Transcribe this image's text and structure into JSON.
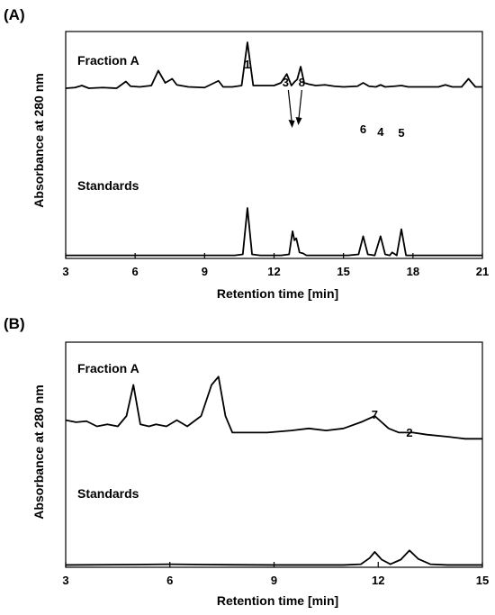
{
  "chart_data": [
    {
      "type": "line",
      "panel_label": "(A)",
      "xlabel": "Retention time [min]",
      "ylabel": "Absorbance at 280 nm",
      "xlim": [
        3,
        21
      ],
      "xticks": [
        "3",
        "6",
        "9",
        "12",
        "15",
        "18",
        "21"
      ],
      "y_ticks_shown": false,
      "series": [
        {
          "name": "Fraction A",
          "color": "#000000",
          "baseline": 0.58,
          "x": [
            3.0,
            3.4,
            3.7,
            4.0,
            4.6,
            5.2,
            5.6,
            5.8,
            6.2,
            6.7,
            7.0,
            7.3,
            7.6,
            7.8,
            8.3,
            9.0,
            9.6,
            9.8,
            10.2,
            10.6,
            10.85,
            11.1,
            11.5,
            12.0,
            12.3,
            12.55,
            12.75,
            12.9,
            13.0,
            13.15,
            13.3,
            13.5,
            13.8,
            14.2,
            14.6,
            15.0,
            15.6,
            15.85,
            16.1,
            16.4,
            16.6,
            16.8,
            17.2,
            17.5,
            17.8,
            18.2,
            18.7,
            19.1,
            19.4,
            19.7,
            20.1,
            20.4,
            20.7,
            21.0
          ],
          "y": [
            0.58,
            0.585,
            0.6,
            0.58,
            0.585,
            0.58,
            0.63,
            0.595,
            0.59,
            0.6,
            0.71,
            0.62,
            0.65,
            0.605,
            0.59,
            0.585,
            0.635,
            0.59,
            0.59,
            0.6,
            0.92,
            0.6,
            0.6,
            0.6,
            0.62,
            0.685,
            0.6,
            0.63,
            0.645,
            0.74,
            0.62,
            0.61,
            0.6,
            0.605,
            0.595,
            0.59,
            0.595,
            0.62,
            0.595,
            0.59,
            0.605,
            0.59,
            0.595,
            0.6,
            0.59,
            0.59,
            0.59,
            0.59,
            0.605,
            0.59,
            0.59,
            0.65,
            0.59,
            0.59
          ]
        },
        {
          "name": "Standards",
          "color": "#000000",
          "baseline": 0.03,
          "x": [
            3.0,
            5.0,
            8.0,
            10.3,
            10.65,
            10.85,
            11.05,
            11.4,
            12.3,
            12.65,
            12.8,
            12.88,
            12.96,
            13.1,
            13.25,
            13.4,
            13.6,
            15.2,
            15.65,
            15.85,
            16.05,
            16.35,
            16.6,
            16.8,
            17.0,
            17.1,
            17.3,
            17.5,
            17.7,
            18.2,
            21.0
          ],
          "y": [
            0.03,
            0.03,
            0.03,
            0.03,
            0.04,
            0.5,
            0.04,
            0.03,
            0.03,
            0.04,
            0.27,
            0.18,
            0.2,
            0.06,
            0.05,
            0.03,
            0.03,
            0.03,
            0.04,
            0.22,
            0.04,
            0.03,
            0.22,
            0.04,
            0.03,
            0.06,
            0.03,
            0.29,
            0.03,
            0.03,
            0.03
          ]
        }
      ],
      "trace_labels": [
        "Fraction A",
        "Standards"
      ],
      "peak_labels": [
        {
          "text": "1",
          "x": 10.85
        },
        {
          "text": "3",
          "x": 12.5
        },
        {
          "text": "8",
          "x": 13.2
        },
        {
          "text": "6",
          "x": 15.85
        },
        {
          "text": "4",
          "x": 16.6
        },
        {
          "text": "5",
          "x": 17.5
        }
      ]
    },
    {
      "type": "line",
      "panel_label": "(B)",
      "xlabel": "Retention time [min]",
      "ylabel": "Absorbance at 280 nm",
      "xlim": [
        3,
        15
      ],
      "xticks": [
        "3",
        "6",
        "9",
        "12",
        "15"
      ],
      "y_ticks_shown": false,
      "series": [
        {
          "name": "Fraction A",
          "color": "#000000",
          "x": [
            3.0,
            3.3,
            3.6,
            3.9,
            4.2,
            4.5,
            4.75,
            4.95,
            5.15,
            5.4,
            5.6,
            5.9,
            6.2,
            6.5,
            6.9,
            7.2,
            7.4,
            7.6,
            7.8,
            8.2,
            8.8,
            9.5,
            10.0,
            10.5,
            11.0,
            11.5,
            11.9,
            12.3,
            12.6,
            13.0,
            13.4,
            14.0,
            14.5,
            15.0
          ],
          "y": [
            0.58,
            0.57,
            0.575,
            0.55,
            0.56,
            0.55,
            0.6,
            0.75,
            0.56,
            0.55,
            0.56,
            0.55,
            0.58,
            0.55,
            0.6,
            0.75,
            0.79,
            0.6,
            0.52,
            0.52,
            0.52,
            0.53,
            0.54,
            0.53,
            0.54,
            0.57,
            0.6,
            0.54,
            0.52,
            0.52,
            0.51,
            0.5,
            0.49,
            0.49
          ]
        },
        {
          "name": "Standards",
          "color": "#000000",
          "x": [
            3.0,
            5.0,
            6.0,
            7.0,
            9.0,
            11.0,
            11.5,
            11.75,
            11.9,
            12.1,
            12.35,
            12.65,
            12.9,
            13.15,
            13.5,
            14.0,
            15.0
          ],
          "y": [
            0.03,
            0.035,
            0.04,
            0.035,
            0.03,
            0.03,
            0.04,
            0.12,
            0.2,
            0.1,
            0.04,
            0.1,
            0.22,
            0.11,
            0.04,
            0.03,
            0.03
          ]
        }
      ],
      "trace_labels": [
        "Fraction A",
        "Standards"
      ],
      "peak_labels": [
        {
          "text": "7",
          "x": 11.9
        },
        {
          "text": "2",
          "x": 12.9
        }
      ]
    }
  ]
}
